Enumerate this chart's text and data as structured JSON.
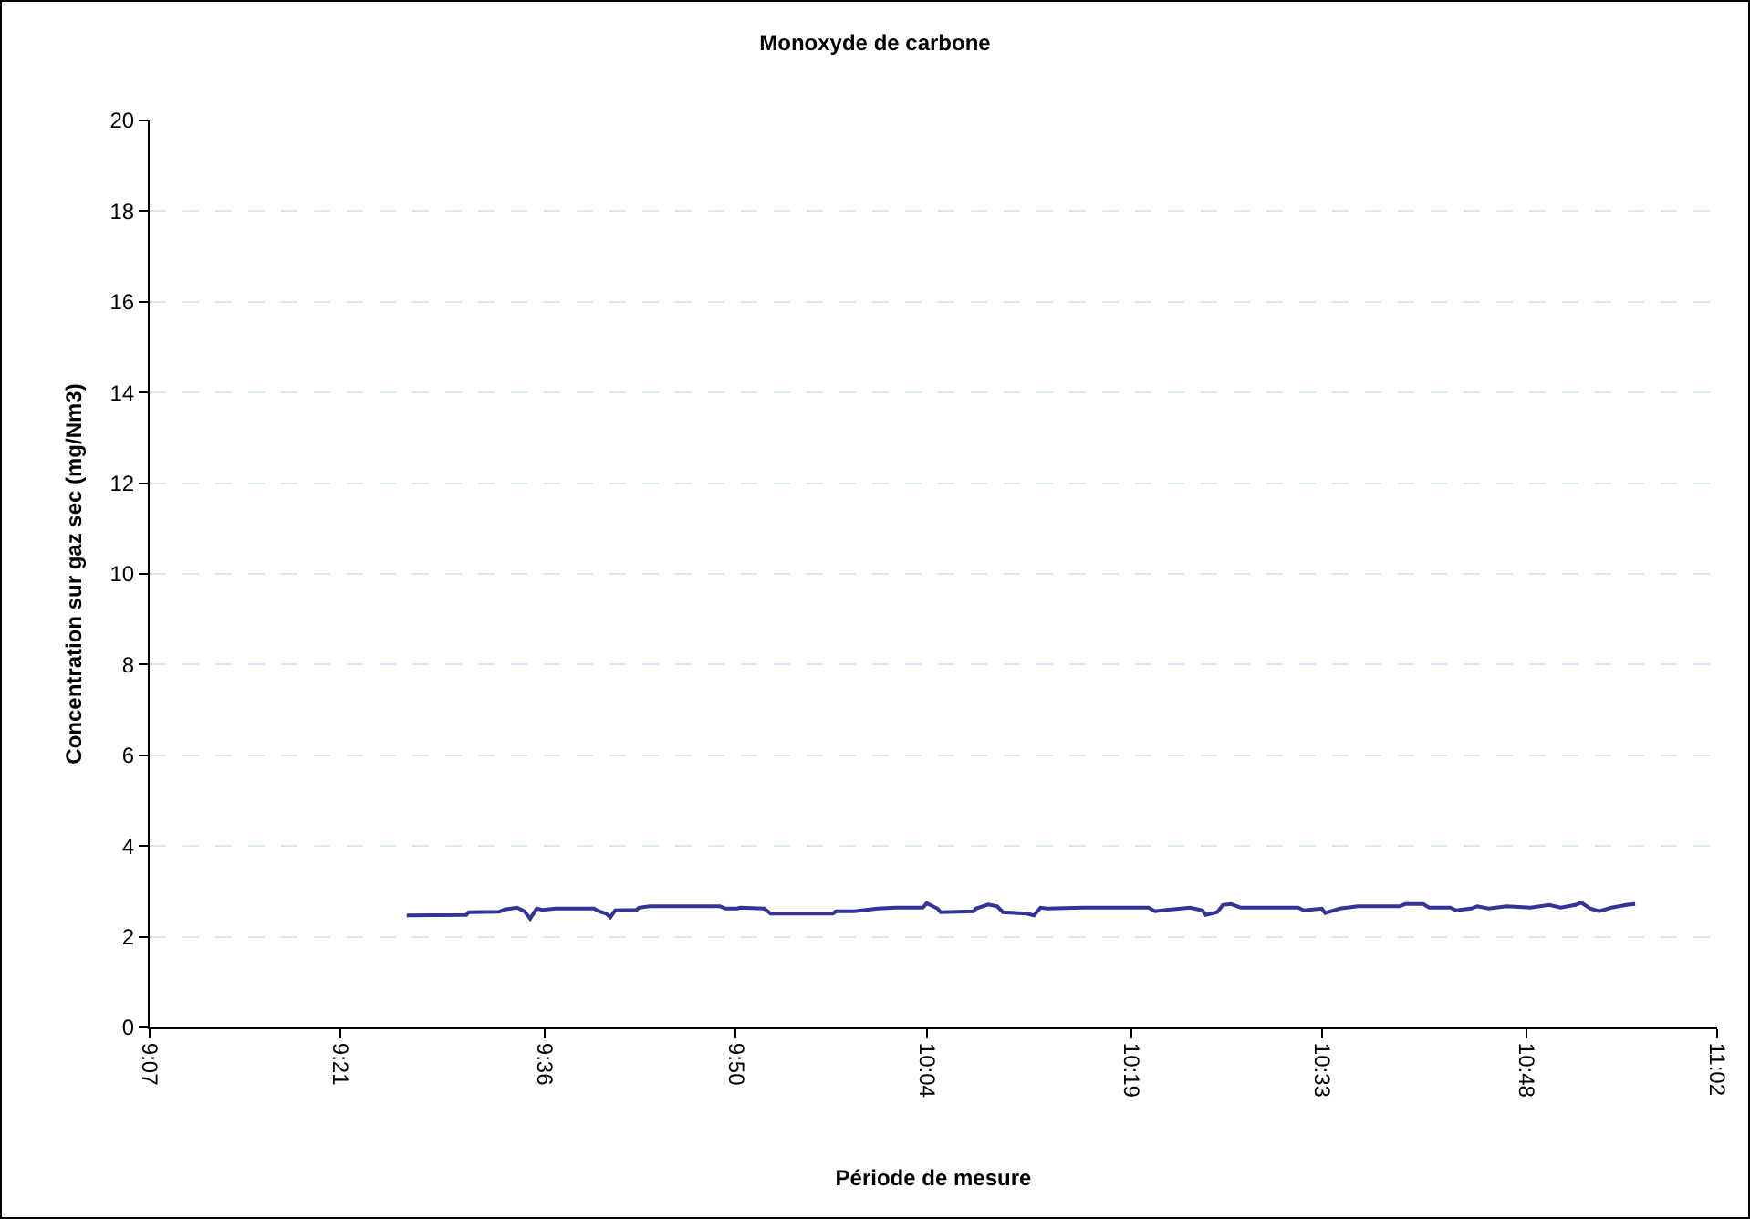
{
  "chart_data": {
    "type": "line",
    "title": "Monoxyde de carbone",
    "xlabel": "Période de mesure",
    "ylabel": "Concentration sur gaz sec (mg/Nm3)",
    "x": [
      9.431,
      9.504,
      9.507,
      9.544,
      9.551,
      9.566,
      9.575,
      9.582,
      9.59,
      9.597,
      9.613,
      9.66,
      9.666,
      9.675,
      9.68,
      9.686,
      9.712,
      9.715,
      9.728,
      9.814,
      9.821,
      9.835,
      9.839,
      9.868,
      9.876,
      9.912,
      9.952,
      9.956,
      9.978,
      10.007,
      10.029,
      10.062,
      10.067,
      10.08,
      10.084,
      10.124,
      10.127,
      10.142,
      10.153,
      10.16,
      10.189,
      10.198,
      10.206,
      10.214,
      10.258,
      10.338,
      10.346,
      10.36,
      10.389,
      10.404,
      10.408,
      10.422,
      10.429,
      10.439,
      10.451,
      10.521,
      10.528,
      10.55,
      10.554,
      10.572,
      10.594,
      10.645,
      10.652,
      10.674,
      10.681,
      10.707,
      10.714,
      10.732,
      10.74,
      10.754,
      10.776,
      10.805,
      10.828,
      10.842,
      10.86,
      10.867,
      10.878,
      10.889,
      10.904,
      10.922,
      10.933
    ],
    "series": [
      {
        "color": "#333399",
        "values": [
          2.47,
          2.48,
          2.54,
          2.55,
          2.6,
          2.64,
          2.56,
          2.4,
          2.62,
          2.59,
          2.62,
          2.62,
          2.56,
          2.51,
          2.43,
          2.58,
          2.59,
          2.64,
          2.67,
          2.67,
          2.62,
          2.62,
          2.64,
          2.62,
          2.51,
          2.51,
          2.51,
          2.56,
          2.56,
          2.62,
          2.64,
          2.64,
          2.74,
          2.62,
          2.54,
          2.56,
          2.62,
          2.71,
          2.67,
          2.54,
          2.51,
          2.47,
          2.64,
          2.62,
          2.64,
          2.64,
          2.56,
          2.59,
          2.64,
          2.58,
          2.48,
          2.54,
          2.7,
          2.72,
          2.64,
          2.64,
          2.58,
          2.62,
          2.52,
          2.62,
          2.67,
          2.67,
          2.72,
          2.72,
          2.64,
          2.64,
          2.58,
          2.62,
          2.67,
          2.62,
          2.67,
          2.64,
          2.7,
          2.64,
          2.7,
          2.75,
          2.62,
          2.56,
          2.64,
          2.7,
          2.72
        ]
      }
    ],
    "xlim": [
      9.1167,
      11.0333
    ],
    "xticks": [
      {
        "value": 9.1167,
        "label": "9:07"
      },
      {
        "value": 9.35,
        "label": "9:21"
      },
      {
        "value": 9.6,
        "label": "9:36"
      },
      {
        "value": 9.8333,
        "label": "9:50"
      },
      {
        "value": 10.0667,
        "label": "10:04"
      },
      {
        "value": 10.3167,
        "label": "10:19"
      },
      {
        "value": 10.55,
        "label": "10:33"
      },
      {
        "value": 10.8,
        "label": "10:48"
      },
      {
        "value": 11.0333,
        "label": "11:02"
      }
    ],
    "ylim": [
      0,
      20
    ],
    "yticks": [
      0,
      2,
      4,
      6,
      8,
      10,
      12,
      14,
      16,
      18,
      20
    ],
    "grid": "y",
    "marker": "none",
    "line_style": "solid"
  }
}
